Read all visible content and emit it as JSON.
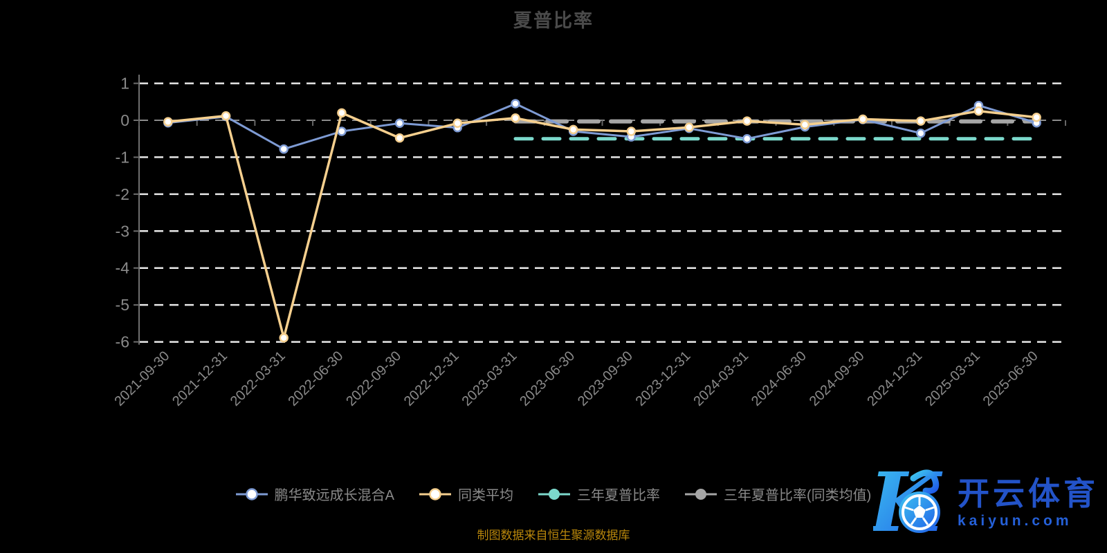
{
  "title": "夏普比率",
  "source_note": "制图数据来自恒生聚源数据库",
  "watermark": {
    "logo_letter": "K",
    "brand_cn": "开云体育",
    "brand_url": "kaiyun.com",
    "logo_color_start": "#3ec6f0",
    "logo_color_end": "#1f5be8"
  },
  "chart_data": {
    "type": "line",
    "title": "夏普比率",
    "categories": [
      "2021-09-30",
      "2021-12-31",
      "2022-03-31",
      "2022-06-30",
      "2022-09-30",
      "2022-12-31",
      "2023-03-31",
      "2023-06-30",
      "2023-09-30",
      "2023-12-31",
      "2024-03-31",
      "2024-06-30",
      "2024-09-30",
      "2024-12-31",
      "2025-03-31",
      "2025-06-30"
    ],
    "yticks": [
      1,
      0,
      -1,
      -2,
      -3,
      -4,
      -5,
      -6
    ],
    "ylim": [
      -6.3,
      1.2
    ],
    "grid": true,
    "legend_position": "bottom",
    "gridline_color": "#e8e8e8",
    "zero_line_color": "#8c8c8c",
    "axis_color": "#6f6f6f",
    "axis_label_color": "#8a8a8a",
    "series": [
      {
        "name": "鹏华致远成长混合A",
        "color": "#7e9bd4",
        "line": "solid",
        "marker": "hollow",
        "values": [
          -0.07,
          0.1,
          -0.78,
          -0.3,
          -0.08,
          -0.2,
          0.45,
          -0.3,
          -0.45,
          -0.22,
          -0.5,
          -0.18,
          0.02,
          -0.35,
          0.4,
          -0.07
        ]
      },
      {
        "name": "同类平均",
        "color": "#f5cf8e",
        "line": "solid",
        "marker": "hollow",
        "values": [
          -0.04,
          0.12,
          -5.89,
          0.2,
          -0.48,
          -0.08,
          0.06,
          -0.25,
          -0.3,
          -0.19,
          -0.02,
          -0.12,
          0.03,
          -0.02,
          0.25,
          0.08
        ]
      },
      {
        "name": "三年夏普比率",
        "color": "#7cd9cc",
        "line": "dashed",
        "marker": "filled",
        "values": [
          null,
          null,
          null,
          null,
          null,
          null,
          -0.5,
          -0.5,
          -0.5,
          -0.5,
          -0.5,
          -0.5,
          -0.5,
          -0.5,
          -0.5,
          -0.5
        ]
      },
      {
        "name": "三年夏普比率(同类均值)",
        "color": "#a6a6a6",
        "line": "dashed",
        "marker": "filled",
        "values": [
          null,
          null,
          null,
          null,
          null,
          null,
          -0.03,
          -0.03,
          -0.03,
          -0.03,
          -0.03,
          -0.03,
          -0.03,
          -0.03,
          -0.03,
          -0.03
        ]
      }
    ]
  }
}
